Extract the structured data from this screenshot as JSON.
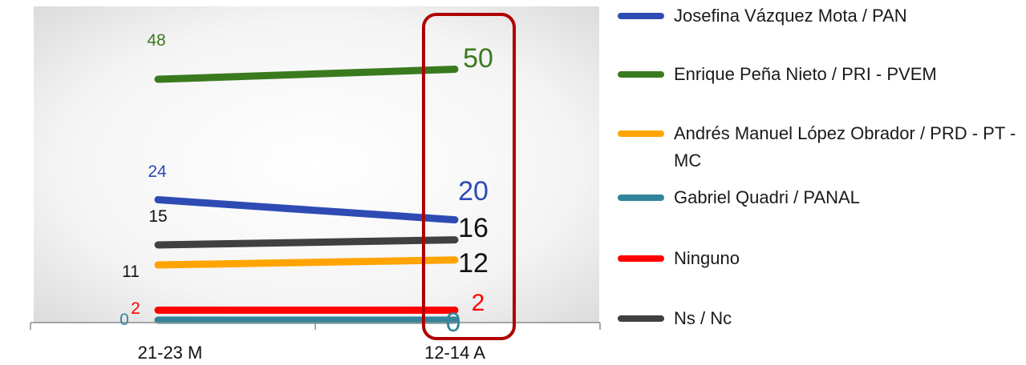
{
  "chart_data": {
    "type": "line",
    "categories": [
      "21-23 M",
      "12-14 A"
    ],
    "ylim": [
      0,
      60
    ],
    "legend_placement": "right",
    "highlight_category": "12-14 A",
    "highlight_color": "#b00000",
    "series": [
      {
        "name": "Josefina Vázquez Mota / PAN",
        "values": [
          24,
          20
        ],
        "color": "#2e4bb4"
      },
      {
        "name": "Enrique Peña Nieto / PRI - PVEM",
        "values": [
          48,
          50
        ],
        "color": "#3a7a1e"
      },
      {
        "name": "Andrés Manuel López Obrador / PRD - PT - MC",
        "values": [
          11,
          12
        ],
        "color": "#ffa400"
      },
      {
        "name": "Gabriel Quadri / PANAL",
        "values": [
          0,
          0
        ],
        "color": "#31869b"
      },
      {
        "name": "Ninguno",
        "values": [
          2,
          2
        ],
        "color": "#ff0000"
      },
      {
        "name": "Ns / Nc",
        "values": [
          15,
          16
        ],
        "color": "#404040"
      }
    ],
    "point_labels": [
      [
        "24",
        "20"
      ],
      [
        "48",
        "50"
      ],
      [
        "11",
        "12"
      ],
      [
        "0",
        "0"
      ],
      [
        "2",
        "2"
      ],
      [
        "15",
        "16"
      ]
    ]
  }
}
